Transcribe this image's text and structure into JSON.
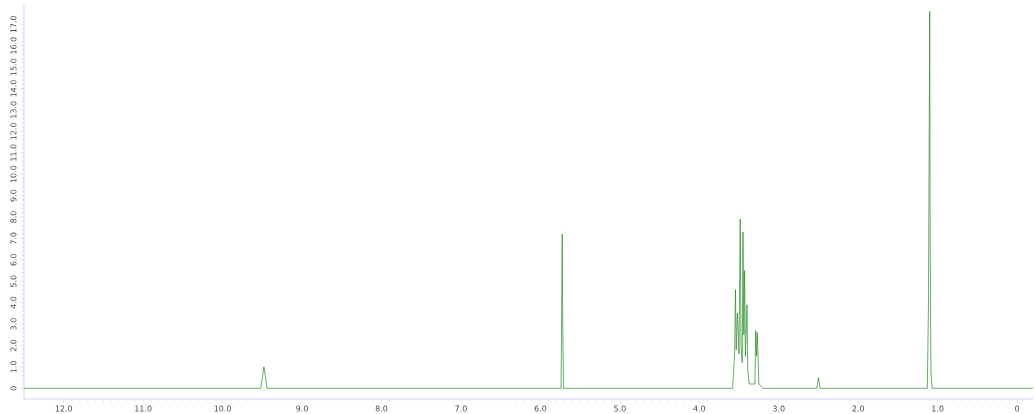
{
  "chart_data": {
    "type": "line",
    "xlim": [
      12.5,
      -0.2
    ],
    "xticks": [
      {
        "value": 12,
        "label": "12.0"
      },
      {
        "value": 11,
        "label": "11.0"
      },
      {
        "value": 10,
        "label": "10.0"
      },
      {
        "value": 9,
        "label": "9.0"
      },
      {
        "value": 8,
        "label": "8.0"
      },
      {
        "value": 7,
        "label": "7.0"
      },
      {
        "value": 6,
        "label": "6.0"
      },
      {
        "value": 5,
        "label": "5.0"
      },
      {
        "value": 4,
        "label": "4.0"
      },
      {
        "value": 3,
        "label": "3.0"
      },
      {
        "value": 2,
        "label": "2.0"
      },
      {
        "value": 1,
        "label": "1.0"
      },
      0
    ],
    "ylim": [
      -0.5,
      17.9
    ],
    "yticks": [
      0,
      {
        "value": 1,
        "label": "1.0"
      },
      {
        "value": 2,
        "label": "2.0"
      },
      {
        "value": 3,
        "label": "3.0"
      },
      {
        "value": 4,
        "label": "4.0"
      },
      {
        "value": 5,
        "label": "5.0"
      },
      {
        "value": 6,
        "label": "6.0"
      },
      {
        "value": 7,
        "label": "7.0"
      },
      {
        "value": 8,
        "label": "8.0"
      },
      {
        "value": 9,
        "label": "9.0"
      },
      {
        "value": 10,
        "label": "10.0"
      },
      {
        "value": 11,
        "label": "11.0"
      },
      {
        "value": 12,
        "label": "12.0"
      },
      {
        "value": 13,
        "label": "13.0"
      },
      {
        "value": 14,
        "label": "14.0"
      },
      {
        "value": 15,
        "label": "15.0"
      },
      {
        "value": 16,
        "label": "16.0"
      },
      {
        "value": 17,
        "label": "17.0"
      }
    ],
    "x": [
      12.5,
      9.52,
      9.48,
      9.44,
      5.74,
      5.725,
      5.72,
      5.71,
      3.58,
      3.555,
      3.545,
      3.535,
      3.52,
      3.5,
      3.49,
      3.485,
      3.475,
      3.46,
      3.45,
      3.44,
      3.43,
      3.42,
      3.4,
      3.39,
      3.37,
      3.3,
      3.29,
      3.28,
      3.27,
      3.25,
      3.2,
      2.52,
      2.5,
      2.48,
      1.13,
      1.115,
      1.11,
      1.1,
      1.095,
      1.085,
      1.07,
      -0.2
    ],
    "series": [
      {
        "color": "#228b22",
        "values": [
          0,
          0,
          1.0,
          0,
          0,
          7.2,
          3.6,
          0,
          0,
          1.7,
          4.6,
          1.8,
          3.5,
          1.6,
          6.0,
          7.9,
          2.0,
          1.2,
          7.3,
          2.5,
          5.5,
          1.5,
          3.9,
          0.8,
          0.2,
          0.2,
          2.7,
          1.5,
          2.6,
          0.2,
          0,
          0,
          0.5,
          0,
          0,
          4.1,
          8.9,
          17.6,
          7.7,
          0.8,
          0,
          0
        ]
      }
    ]
  }
}
